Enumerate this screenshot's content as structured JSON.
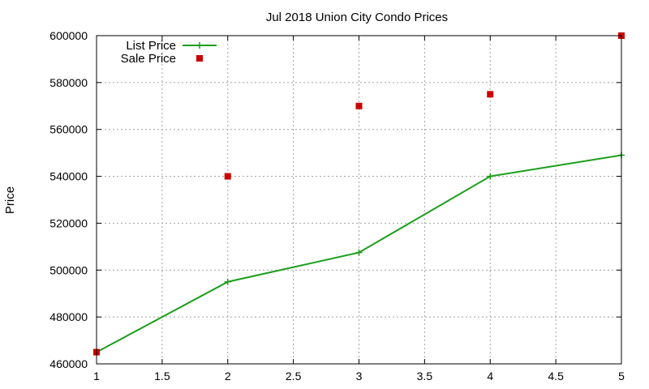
{
  "chart_data": {
    "type": "line",
    "title": "Jul 2018 Union City Condo Prices",
    "xlabel": "",
    "ylabel": "Price",
    "xlim": [
      1,
      5
    ],
    "ylim": [
      460000,
      600000
    ],
    "x_ticks": [
      "1",
      "1.5",
      "2",
      "2.5",
      "3",
      "3.5",
      "4",
      "4.5",
      "5"
    ],
    "y_ticks": [
      "460000",
      "480000",
      "500000",
      "520000",
      "540000",
      "560000",
      "580000",
      "600000"
    ],
    "grid": true,
    "legend_position": "top-left",
    "series": [
      {
        "name": "List Price",
        "style": "line-with-plus-markers",
        "color": "#1a9e1a",
        "x": [
          1,
          2,
          3,
          4,
          5
        ],
        "y": [
          465000,
          495000,
          507500,
          540000,
          549000
        ]
      },
      {
        "name": "Sale Price",
        "style": "square-markers",
        "color": "#cc0000",
        "x": [
          1,
          2,
          3,
          4,
          5
        ],
        "y": [
          465000,
          540000,
          570000,
          575000,
          600000
        ]
      }
    ]
  }
}
